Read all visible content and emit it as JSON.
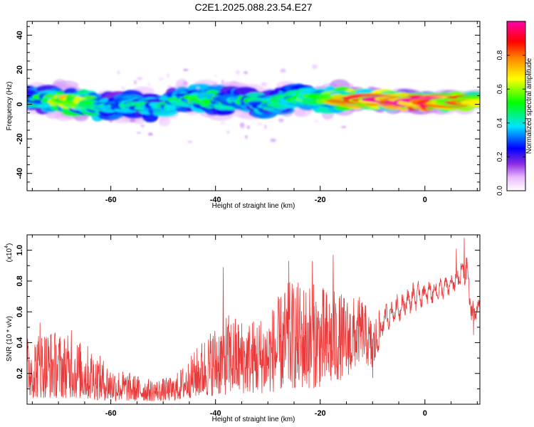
{
  "title": "C2E1.2025.088.23.54.E27",
  "chart_data": [
    {
      "type": "heatmap",
      "xlabel": "Height of straight line (km)",
      "ylabel": "Frequency (Hz)",
      "xlim": [
        -76,
        10.5
      ],
      "ylim": [
        -50,
        48
      ],
      "xticks": [
        -60,
        -40,
        -20,
        0
      ],
      "yticks": [
        -40,
        -20,
        0,
        20,
        40
      ],
      "colorbar": {
        "label": "Normalized spectral amplitude",
        "range": [
          0,
          1
        ],
        "ticks": [
          "0.0",
          "0.2",
          "0.4",
          "0.6",
          "0.8"
        ],
        "colors": [
          "#ffffff",
          "#e9b8ff",
          "#8a2be2",
          "#0000ff",
          "#00e5ff",
          "#00ff00",
          "#ffff00",
          "#ff8800",
          "#ff0000",
          "#ff00aa"
        ]
      },
      "ridge": [
        {
          "x": -75,
          "f": 2.5,
          "a": 0.35
        },
        {
          "x": -70,
          "f": 3.0,
          "a": 0.55
        },
        {
          "x": -66,
          "f": 1.0,
          "a": 0.6
        },
        {
          "x": -62,
          "f": -2.0,
          "a": 0.4
        },
        {
          "x": -58,
          "f": 0.5,
          "a": 0.35
        },
        {
          "x": -54,
          "f": -1.0,
          "a": 0.4
        },
        {
          "x": -50,
          "f": -2.0,
          "a": 0.35
        },
        {
          "x": -46,
          "f": 4.0,
          "a": 0.4
        },
        {
          "x": -42,
          "f": 3.0,
          "a": 0.45
        },
        {
          "x": -38,
          "f": 2.0,
          "a": 0.4
        },
        {
          "x": -34,
          "f": 2.0,
          "a": 0.4
        },
        {
          "x": -30,
          "f": -1.0,
          "a": 0.35
        },
        {
          "x": -26,
          "f": 4.0,
          "a": 0.45
        },
        {
          "x": -22,
          "f": 3.0,
          "a": 0.45
        },
        {
          "x": -18,
          "f": 2.5,
          "a": 0.5
        },
        {
          "x": -14,
          "f": 3.0,
          "a": 0.75
        },
        {
          "x": -10,
          "f": 3.0,
          "a": 0.8
        },
        {
          "x": -6,
          "f": 2.0,
          "a": 0.8
        },
        {
          "x": -2,
          "f": 1.5,
          "a": 0.95
        },
        {
          "x": 2,
          "f": 1.5,
          "a": 0.9
        },
        {
          "x": 5,
          "f": 1.0,
          "a": 0.7
        },
        {
          "x": 8,
          "f": 1.5,
          "a": 0.8
        },
        {
          "x": 10.5,
          "f": 1.5,
          "a": 0.6
        }
      ]
    },
    {
      "type": "line",
      "xlabel": "Height of straight line (km)",
      "ylabel": "SNR (10 * v/v)",
      "yscale_label": "(x10",
      "yscale_exp": "4",
      "yscale_close": ")",
      "xlim": [
        -76,
        10.5
      ],
      "ylim": [
        0,
        1.1
      ],
      "xticks": [
        -60,
        -40,
        -20,
        0
      ],
      "yticks": [
        0.2,
        0.4,
        0.6,
        0.8,
        1.0
      ],
      "color": "#e83a3a",
      "envelope": [
        {
          "x": -76,
          "lo": 0.04,
          "hi": 0.45
        },
        {
          "x": -72,
          "lo": 0.04,
          "hi": 0.5
        },
        {
          "x": -68,
          "lo": 0.04,
          "hi": 0.45
        },
        {
          "x": -64,
          "lo": 0.03,
          "hi": 0.38
        },
        {
          "x": -60,
          "lo": 0.02,
          "hi": 0.25
        },
        {
          "x": -56,
          "lo": 0.02,
          "hi": 0.2
        },
        {
          "x": -52,
          "lo": 0.02,
          "hi": 0.16
        },
        {
          "x": -48,
          "lo": 0.02,
          "hi": 0.18
        },
        {
          "x": -45,
          "lo": 0.04,
          "hi": 0.3
        },
        {
          "x": -42,
          "lo": 0.05,
          "hi": 0.45
        },
        {
          "x": -38,
          "lo": 0.06,
          "hi": 0.6
        },
        {
          "x": -34,
          "lo": 0.07,
          "hi": 0.55
        },
        {
          "x": -30,
          "lo": 0.07,
          "hi": 0.6
        },
        {
          "x": -26,
          "lo": 0.1,
          "hi": 0.8
        },
        {
          "x": -22,
          "lo": 0.1,
          "hi": 0.8
        },
        {
          "x": -18,
          "lo": 0.12,
          "hi": 0.75
        },
        {
          "x": -14,
          "lo": 0.2,
          "hi": 0.7
        },
        {
          "x": -12,
          "lo": 0.3,
          "hi": 0.7
        },
        {
          "x": -10,
          "lo": 0.2,
          "hi": 0.55
        },
        {
          "x": -8,
          "lo": 0.45,
          "hi": 0.65
        },
        {
          "x": -6,
          "lo": 0.5,
          "hi": 0.7
        },
        {
          "x": -2,
          "lo": 0.6,
          "hi": 0.8
        },
        {
          "x": 2,
          "lo": 0.65,
          "hi": 0.82
        },
        {
          "x": 5,
          "lo": 0.7,
          "hi": 0.85
        },
        {
          "x": 8,
          "lo": 0.75,
          "hi": 1.0
        },
        {
          "x": 9,
          "lo": 0.45,
          "hi": 0.7
        },
        {
          "x": 10.5,
          "lo": 0.6,
          "hi": 0.7
        }
      ],
      "peaks": [
        {
          "x": -73.5,
          "y": 0.53
        },
        {
          "x": -67.5,
          "y": 0.48
        },
        {
          "x": -38.5,
          "y": 0.89
        },
        {
          "x": -26,
          "y": 0.93
        },
        {
          "x": -21.5,
          "y": 0.93
        },
        {
          "x": -17.5,
          "y": 0.97
        },
        {
          "x": -10,
          "y": 0.17
        },
        {
          "x": 6,
          "y": 1.01
        },
        {
          "x": 7.5,
          "y": 1.08
        },
        {
          "x": 9.3,
          "y": 0.45
        }
      ]
    }
  ]
}
